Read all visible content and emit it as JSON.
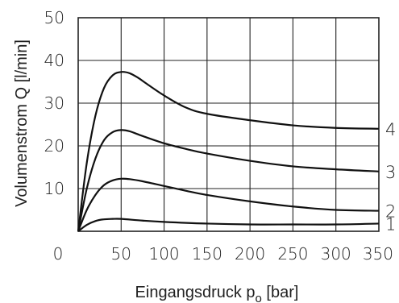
{
  "chart_data": {
    "type": "line",
    "xlabel": "Eingangsdruck p",
    "xlabel_sub": "o",
    "xlabel_unit": " [bar]",
    "ylabel": "Volumenstrom Q [l/min]",
    "xlim": [
      0,
      350
    ],
    "ylim": [
      0,
      50
    ],
    "x_ticks": [
      0,
      50,
      100,
      150,
      200,
      250,
      300,
      350
    ],
    "y_ticks": [
      10,
      20,
      30,
      40,
      50
    ],
    "x_tick_labels": [
      "0",
      "50",
      "100",
      "150",
      "200",
      "250",
      "300",
      "350"
    ],
    "y_tick_labels": [
      "10",
      "20",
      "30",
      "40",
      "50"
    ],
    "grid": true,
    "series": [
      {
        "name": "1",
        "x": [
          0,
          10,
          20,
          30,
          40,
          50,
          75,
          100,
          150,
          200,
          250,
          300,
          350
        ],
        "y": [
          0,
          1.5,
          2.4,
          2.8,
          2.9,
          2.9,
          2.5,
          2.2,
          1.8,
          1.6,
          1.6,
          1.6,
          1.8
        ]
      },
      {
        "name": "2",
        "x": [
          0,
          10,
          20,
          30,
          40,
          50,
          60,
          75,
          100,
          125,
          150,
          200,
          250,
          300,
          350
        ],
        "y": [
          0,
          5,
          8.5,
          10.8,
          11.9,
          12.3,
          12.2,
          11.7,
          10.6,
          9.5,
          8.5,
          7.0,
          5.8,
          5.0,
          4.8
        ]
      },
      {
        "name": "3",
        "x": [
          0,
          10,
          20,
          30,
          40,
          50,
          60,
          75,
          100,
          125,
          150,
          200,
          250,
          300,
          350
        ],
        "y": [
          0,
          10,
          17,
          21.3,
          23.2,
          23.7,
          23.4,
          22.3,
          20.6,
          19.3,
          18.2,
          16.5,
          15.2,
          14.5,
          14.0
        ]
      },
      {
        "name": "4",
        "x": [
          0,
          10,
          20,
          30,
          40,
          50,
          60,
          70,
          80,
          100,
          125,
          150,
          200,
          250,
          300,
          350
        ],
        "y": [
          0,
          16,
          27,
          33.5,
          36.5,
          37.3,
          37.0,
          35.9,
          34.5,
          31.8,
          29.0,
          27.5,
          26.0,
          24.8,
          24.2,
          24.0
        ]
      }
    ]
  }
}
